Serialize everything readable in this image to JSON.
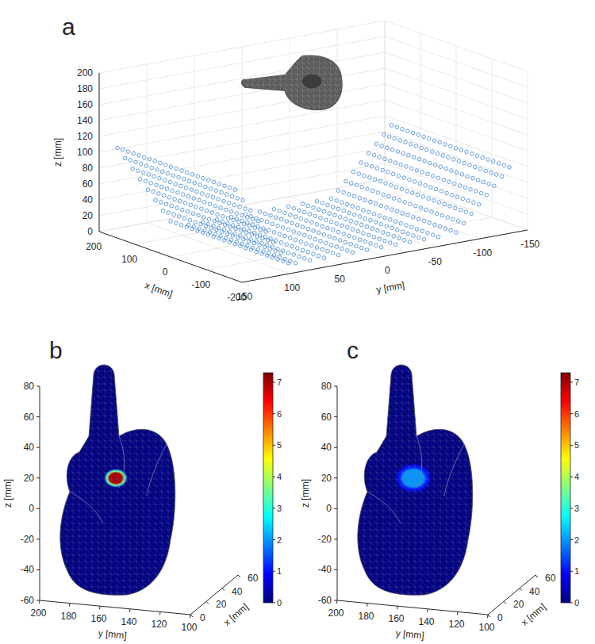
{
  "chart_data": [
    {
      "type": "scatter3d",
      "title": "a",
      "xlabel": "x [mm]",
      "ylabel": "y [mm]",
      "zlabel": "z [mm]",
      "xlim": [
        -200,
        200
      ],
      "ylim": [
        -150,
        150
      ],
      "zlim": [
        0,
        200
      ],
      "xticks": [
        -200,
        -100,
        0,
        100,
        200
      ],
      "yticks": [
        -150,
        -100,
        -50,
        0,
        50,
        100,
        150
      ],
      "zticks": [
        0,
        20,
        40,
        60,
        80,
        100,
        120,
        140,
        160,
        180,
        200
      ],
      "grid": true,
      "color": "#3f86cf",
      "marker": "circle",
      "hand_center": [
        0,
        20,
        185
      ],
      "arrays": [
        {
          "x": [
            -150,
            -135,
            -120,
            -105,
            -90,
            -75,
            -60,
            -45,
            -30,
            -15,
            0,
            15,
            30,
            45,
            60,
            75,
            90,
            105,
            120,
            135,
            150
          ],
          "yz": [
            [
              -75,
              0
            ],
            [
              -60,
              0
            ],
            [
              -45,
              0
            ],
            [
              -30,
              0
            ],
            [
              -15,
              0
            ],
            [
              0,
              0
            ],
            [
              15,
              0
            ],
            [
              30,
              0
            ],
            [
              45,
              0
            ],
            [
              60,
              0
            ],
            [
              75,
              0
            ]
          ]
        },
        {
          "x": [
            -165,
            -150,
            -135,
            -120,
            -105,
            -90,
            -75,
            -60,
            -45,
            -30,
            -15,
            0,
            15,
            30,
            45,
            60,
            75,
            90,
            105,
            120,
            135,
            150,
            165
          ],
          "yz": [
            [
              88,
              5
            ],
            [
              96,
              20
            ],
            [
              104,
              35
            ],
            [
              112,
              50
            ],
            [
              120,
              65
            ],
            [
              128,
              80
            ],
            [
              136,
              95
            ],
            [
              144,
              110
            ]
          ]
        },
        {
          "x": [
            -165,
            -150,
            -135,
            -120,
            -105,
            -90,
            -75,
            -60,
            -45,
            -30,
            -15,
            0,
            15,
            30,
            45,
            60,
            75,
            90,
            105,
            120,
            135,
            150,
            165
          ],
          "yz": [
            [
              -88,
              5
            ],
            [
              -96,
              15
            ],
            [
              -104,
              25
            ],
            [
              -112,
              35
            ],
            [
              -120,
              45
            ],
            [
              -128,
              55
            ],
            [
              -136,
              65
            ],
            [
              -144,
              75
            ]
          ]
        }
      ]
    },
    {
      "type": "surface3d",
      "title": "b",
      "xlabel": "x [mm]",
      "ylabel": "y [mm]",
      "zlabel": "z [mm]",
      "xlim": [
        0,
        60
      ],
      "ylim": [
        100,
        200
      ],
      "zlim": [
        -60,
        80
      ],
      "xticks": [
        0,
        20,
        40,
        60
      ],
      "yticks": [
        100,
        120,
        140,
        160,
        180,
        200
      ],
      "zticks": [
        -60,
        -40,
        -20,
        0,
        20,
        40,
        60,
        80
      ],
      "clim": [
        0,
        7.3
      ],
      "cticks": [
        0,
        1,
        2,
        3,
        4,
        5,
        6,
        7
      ],
      "focus": {
        "x": 20,
        "y": 160,
        "z": 15
      },
      "peak": 7
    },
    {
      "type": "surface3d",
      "title": "c",
      "xlabel": "x [mm]",
      "ylabel": "y [mm]",
      "zlabel": "z [mm]",
      "xlim": [
        0,
        60
      ],
      "ylim": [
        100,
        200
      ],
      "zlim": [
        -60,
        80
      ],
      "xticks": [
        0,
        20,
        40,
        60
      ],
      "yticks": [
        100,
        120,
        140,
        160,
        180,
        200
      ],
      "zticks": [
        -60,
        -40,
        -20,
        0,
        20,
        40,
        60,
        80
      ],
      "clim": [
        0,
        7.3
      ],
      "cticks": [
        0,
        1,
        2,
        3,
        4,
        5,
        6,
        7
      ],
      "focus": {
        "x": 20,
        "y": 160,
        "z": 15
      },
      "peak": 2
    }
  ]
}
